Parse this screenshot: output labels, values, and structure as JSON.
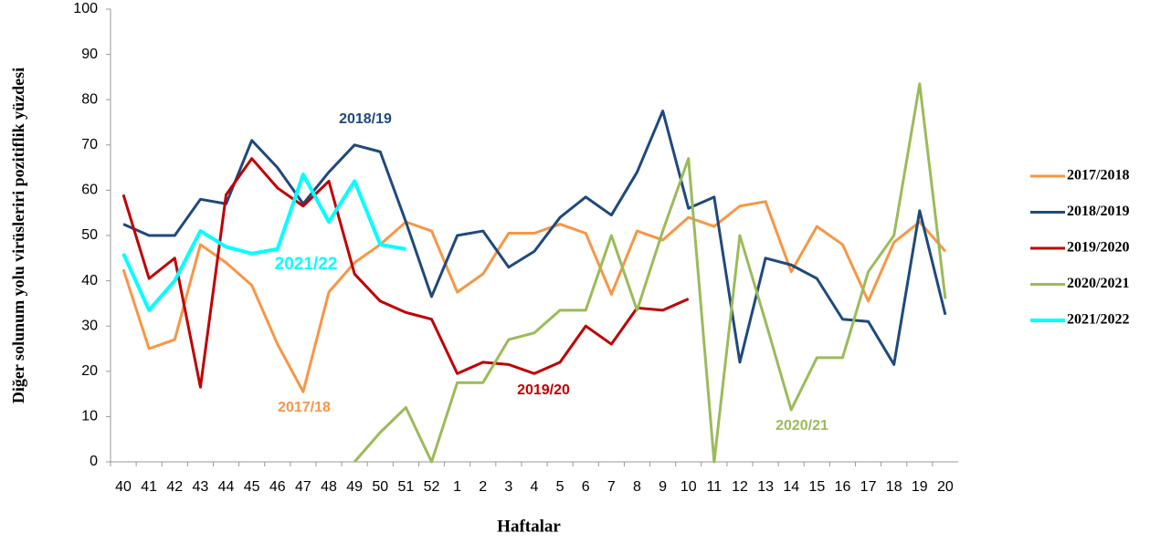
{
  "chart_data": {
    "type": "line",
    "x_label": "Haftalar",
    "y_label": "Diğer solunum yolu virüsleriri pozitiflik yüzdesi",
    "categories": [
      "40",
      "41",
      "42",
      "43",
      "44",
      "45",
      "46",
      "47",
      "48",
      "49",
      "50",
      "51",
      "52",
      "1",
      "2",
      "3",
      "4",
      "5",
      "6",
      "7",
      "8",
      "9",
      "10",
      "11",
      "12",
      "13",
      "14",
      "15",
      "16",
      "17",
      "18",
      "19",
      "20"
    ],
    "ylim": [
      0,
      100
    ],
    "yticks": [
      0,
      10,
      20,
      30,
      40,
      50,
      60,
      70,
      80,
      90,
      100
    ],
    "grid": false,
    "legend": "right",
    "series": [
      {
        "name": "2017/2018",
        "color": "#f79646",
        "values": [
          42.5,
          25,
          27,
          48,
          44,
          39,
          26,
          15.5,
          37.5,
          44,
          48,
          53,
          51,
          37.5,
          41.5,
          50.5,
          50.5,
          52.5,
          50.5,
          37,
          51,
          49,
          54,
          52,
          56.5,
          57.5,
          42,
          52,
          48,
          35.5,
          48.5,
          53,
          46.5
        ]
      },
      {
        "name": "2018/2019",
        "color": "#1f497d",
        "values": [
          52.5,
          50,
          50,
          58,
          57,
          71,
          65,
          57,
          64,
          70,
          68.5,
          53,
          36.5,
          50,
          51,
          43,
          46.5,
          54,
          58.5,
          54.5,
          64,
          77.5,
          56,
          58.5,
          22,
          45,
          43.5,
          40.5,
          31.5,
          31,
          21.5,
          55.5,
          32.5
        ]
      },
      {
        "name": "2019/2020",
        "color": "#c00000",
        "values": [
          59,
          40.5,
          45,
          16.5,
          59,
          67,
          60.5,
          56.5,
          62,
          41.5,
          35.5,
          33,
          31.5,
          19.5,
          22,
          21.5,
          19.5,
          22,
          30,
          26,
          34,
          33.5,
          36,
          null,
          null,
          null,
          null,
          null,
          null,
          null,
          null,
          null,
          null
        ]
      },
      {
        "name": "2020/2021",
        "color": "#9bbb59",
        "values": [
          null,
          null,
          null,
          null,
          null,
          null,
          null,
          null,
          null,
          0,
          6.5,
          12,
          0,
          17.5,
          17.5,
          27,
          28.5,
          33.5,
          33.5,
          50,
          33.5,
          51,
          67,
          0,
          50,
          31,
          11.5,
          23,
          23,
          42,
          50,
          83.5,
          36
        ]
      },
      {
        "name": "2021/2022",
        "color": "#00ffff",
        "values": [
          46,
          33.5,
          40,
          51,
          47.5,
          46,
          47,
          63.5,
          53,
          62,
          48,
          47,
          null,
          null,
          null,
          null,
          null,
          null,
          null,
          null,
          null,
          null,
          null,
          null,
          null,
          null,
          null,
          null,
          null,
          null,
          null,
          null,
          null
        ]
      }
    ],
    "annotations": [
      {
        "text": "2018/19",
        "color": "#1f497d"
      },
      {
        "text": "2021/22",
        "color": "#00ffff"
      },
      {
        "text": "2017/18",
        "color": "#f79646"
      },
      {
        "text": "2019/20",
        "color": "#c00000"
      },
      {
        "text": "2020/21",
        "color": "#9bbb59"
      }
    ]
  }
}
